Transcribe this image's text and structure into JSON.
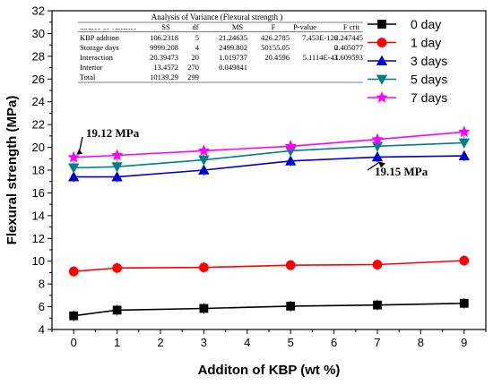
{
  "chart_data": {
    "type": "line",
    "xlabel": "Additon of KBP (wt %)",
    "ylabel": "Flexural strength (MPa)",
    "xlim": [
      -0.5,
      9.5
    ],
    "ylim": [
      4,
      32
    ],
    "xticks": [
      0,
      1,
      2,
      3,
      4,
      5,
      6,
      7,
      8,
      9
    ],
    "yticks": [
      4,
      6,
      8,
      10,
      12,
      14,
      16,
      18,
      20,
      22,
      24,
      26,
      28,
      30,
      32
    ],
    "x": [
      0,
      1,
      3,
      5,
      7,
      9
    ],
    "legend_position": "top-right",
    "series": [
      {
        "name": "0 day",
        "color": "#000000",
        "marker": "square",
        "values": [
          5.2,
          5.7,
          5.85,
          6.05,
          6.15,
          6.3
        ]
      },
      {
        "name": "1 day",
        "color": "#ff0000",
        "marker": "circle",
        "values": [
          9.1,
          9.4,
          9.45,
          9.65,
          9.7,
          10.05
        ]
      },
      {
        "name": "3 days",
        "color": "#0000cc",
        "marker": "triangle-up",
        "values": [
          17.4,
          17.4,
          18.0,
          18.8,
          19.15,
          19.25
        ]
      },
      {
        "name": "5 days",
        "color": "#008080",
        "marker": "triangle-down",
        "values": [
          18.2,
          18.3,
          18.9,
          19.7,
          20.1,
          20.4
        ]
      },
      {
        "name": "7 days",
        "color": "#ff00ff",
        "marker": "star",
        "values": [
          19.12,
          19.3,
          19.7,
          20.1,
          20.7,
          21.35
        ]
      }
    ],
    "annotations": [
      {
        "text": "19.12 MPa",
        "x": 0,
        "y": 19.12
      },
      {
        "text": "19.15 MPa",
        "x": 7,
        "y": 19.15
      }
    ],
    "anova_table": {
      "title": "Analysis of Variance (Flexural strength )",
      "headers": [
        "Source of variance",
        "SS",
        "df",
        "MS",
        "F",
        "P-value",
        "F crit"
      ],
      "rows": [
        [
          "KBP addtion",
          "106.2318",
          "5",
          "21.24635",
          "426.2785",
          "7.453E-126",
          "2.247445"
        ],
        [
          "Storage days",
          "9999.208",
          "4",
          "2499.802",
          "50155.05",
          "0",
          "2.405077"
        ],
        [
          "Interaction",
          "20.39473",
          "20",
          "1.019737",
          "20.4596",
          "5.1114E-43",
          "1.609593"
        ],
        [
          "Interior",
          "13.4572",
          "270",
          "0.049841",
          "",
          "",
          ""
        ],
        [
          "Total",
          "10139.29",
          "299",
          "",
          "",
          "",
          ""
        ]
      ]
    }
  }
}
